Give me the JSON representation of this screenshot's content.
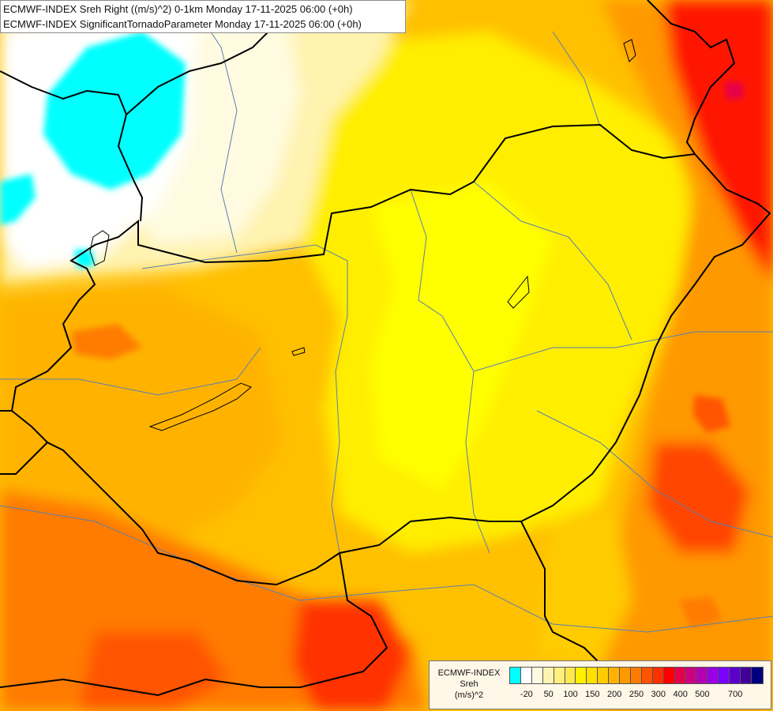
{
  "header": {
    "line1": "ECMWF-INDEX Sreh Right ((m/s)^2) 0-1km Monday 17-11-2025 06:00 (+0h)",
    "line2": "ECMWF-INDEX SignificantTornadoParameter Monday 17-11-2025 06:00 (+0h)"
  },
  "legend": {
    "title1": "ECMWF-INDEX",
    "title2": "Sreh",
    "title3": "(m/s)^2",
    "colors": [
      "#00ffff",
      "#ffffff",
      "#fffbe0",
      "#fff3b0",
      "#ffee80",
      "#ffe84f",
      "#fff000",
      "#ffe000",
      "#ffcc00",
      "#ffb300",
      "#ff9900",
      "#ff7b00",
      "#ff5500",
      "#ff3000",
      "#ff0000",
      "#e6004c",
      "#cc0080",
      "#b300b3",
      "#9900e6",
      "#7a00ff",
      "#5c00cc",
      "#400099",
      "#00007f"
    ],
    "ticks": [
      "-20",
      "50",
      "100",
      "150",
      "200",
      "250",
      "300",
      "400",
      "500",
      "700"
    ]
  }
}
